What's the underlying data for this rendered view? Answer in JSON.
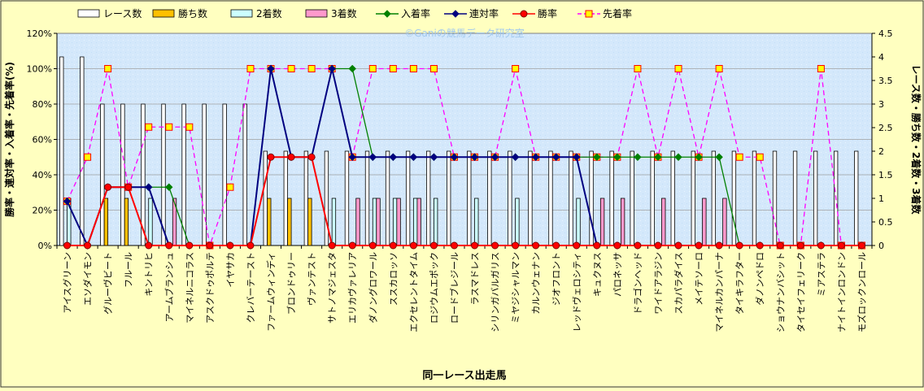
{
  "chart_data": {
    "type": "bar+line",
    "watermark": "©Ganiの競馬データ研究室",
    "xlabel": "同一レース出走馬",
    "ylabel_left": "勝率・連対率・入着率・先着率(%)",
    "ylabel_right": "レース数・勝ち数・2着数・3着数",
    "ylim_left": [
      0,
      120
    ],
    "ylim_right": [
      0,
      4.5
    ],
    "yticks_left": [
      "0%",
      "20%",
      "40%",
      "60%",
      "80%",
      "100%",
      "120%"
    ],
    "yticks_right": [
      "0",
      "0.5",
      "1",
      "1.5",
      "2",
      "2.5",
      "3",
      "3.5",
      "4",
      "4.5"
    ],
    "grid": true,
    "legend_position": "top",
    "categories": [
      "アイスグリーン",
      "エソダイモン",
      "グルーヴビート",
      "フルール",
      "キントリヒ",
      "アームブランシュ",
      "マイネルニコラス",
      "アスクドゥポルテ",
      "イヤサカ",
      "クレバーテースト",
      "ファームウィンディ",
      "ブロンドゥリー",
      "ヴァンテスト",
      "サトノマジェスタ",
      "エリカヴァレリア",
      "ダノングロワール",
      "ススカロッソ",
      "エクセレントタイム",
      "ロジウムエポック",
      "ロードブレジール",
      "ラスマドレス",
      "シリンガバルガリス",
      "ミヤジシャルマン",
      "カルンウェナン",
      "ジオフロント",
      "レッドヴェロシティ",
      "キュクヌス",
      "パロネッサ",
      "ドラゴンヘッド",
      "ワイドアラジン",
      "スカパラダイス",
      "メイテソーロ",
      "マイネルカンパーナ",
      "タイキラフター",
      "ダノンペドロ",
      "ショウナンバシット",
      "タイセイフェリーク",
      "ミアステラ",
      "ナイトインロンドン",
      "モズロックンロール"
    ],
    "series": [
      {
        "name": "レース数",
        "kind": "bar",
        "axis": "right",
        "color": "#FFFFFF",
        "values": [
          4,
          4,
          3,
          3,
          3,
          3,
          3,
          3,
          3,
          3,
          2,
          2,
          2,
          2,
          2,
          2,
          2,
          2,
          2,
          2,
          2,
          2,
          2,
          2,
          2,
          2,
          2,
          2,
          2,
          2,
          2,
          2,
          2,
          2,
          2,
          2,
          2,
          2,
          2,
          2
        ]
      },
      {
        "name": "勝ち数",
        "kind": "bar",
        "axis": "right",
        "color": "#FFC000",
        "values": [
          0,
          0,
          1,
          1,
          0,
          0,
          0,
          0,
          0,
          0,
          1,
          1,
          1,
          0,
          0,
          0,
          0,
          0,
          0,
          0,
          0,
          0,
          0,
          0,
          0,
          0,
          0,
          0,
          0,
          0,
          0,
          0,
          0,
          0,
          0,
          0,
          0,
          0,
          0,
          0
        ]
      },
      {
        "name": "2着数",
        "kind": "bar",
        "axis": "right",
        "color": "#CCFFFF",
        "values": [
          1,
          0,
          0,
          0,
          1,
          0,
          0,
          0,
          0,
          0,
          0,
          0,
          0,
          1,
          0,
          1,
          1,
          1,
          1,
          0,
          1,
          0,
          1,
          0,
          0,
          1,
          0,
          0,
          0,
          0,
          0,
          0,
          0,
          0,
          0,
          0,
          0,
          0,
          0,
          0
        ]
      },
      {
        "name": "3着数",
        "kind": "bar",
        "axis": "right",
        "color": "#FF99CC",
        "values": [
          0,
          0,
          0,
          0,
          0,
          1,
          0,
          0,
          0,
          0,
          0,
          0,
          0,
          0,
          1,
          1,
          1,
          1,
          0,
          0,
          0,
          0,
          0,
          0,
          0,
          0,
          1,
          1,
          0,
          1,
          0,
          1,
          1,
          0,
          0,
          0,
          0,
          0,
          0,
          0
        ]
      },
      {
        "name": "入着率",
        "kind": "line",
        "axis": "left",
        "color": "#008000",
        "marker": "diamond",
        "values": [
          25,
          0,
          33,
          33,
          33,
          33,
          0,
          0,
          0,
          0,
          100,
          50,
          50,
          100,
          100,
          50,
          50,
          50,
          50,
          50,
          50,
          50,
          50,
          50,
          50,
          50,
          50,
          50,
          50,
          50,
          50,
          50,
          50,
          0,
          0,
          0,
          0,
          0,
          0,
          0
        ]
      },
      {
        "name": "連対率",
        "kind": "line",
        "axis": "left",
        "color": "#000080",
        "marker": "diamond",
        "values": [
          25,
          0,
          33,
          33,
          33,
          0,
          0,
          0,
          0,
          0,
          100,
          50,
          50,
          100,
          50,
          50,
          50,
          50,
          50,
          50,
          50,
          50,
          50,
          50,
          50,
          50,
          0,
          0,
          0,
          0,
          0,
          0,
          0,
          0,
          0,
          0,
          0,
          0,
          0,
          0
        ]
      },
      {
        "name": "勝率",
        "kind": "line",
        "axis": "left",
        "color": "#FF0000",
        "marker": "circle",
        "values": [
          0,
          0,
          33,
          33,
          0,
          0,
          0,
          0,
          0,
          0,
          50,
          50,
          50,
          0,
          0,
          0,
          0,
          0,
          0,
          0,
          0,
          0,
          0,
          0,
          0,
          0,
          0,
          0,
          0,
          0,
          0,
          0,
          0,
          0,
          0,
          0,
          0,
          0,
          0,
          0
        ]
      },
      {
        "name": "先着率",
        "kind": "line",
        "axis": "left",
        "color": "#FF00FF",
        "dash": true,
        "marker": "square",
        "values": [
          25,
          50,
          100,
          33,
          67,
          67,
          67,
          0,
          33,
          100,
          100,
          100,
          100,
          100,
          50,
          100,
          100,
          100,
          100,
          50,
          50,
          50,
          100,
          50,
          50,
          50,
          50,
          50,
          100,
          50,
          100,
          50,
          100,
          50,
          50,
          0,
          0,
          100,
          0,
          0
        ]
      }
    ],
    "bar_markers": {
      "axis": "left",
      "y": 0,
      "color": "#FF0000"
    }
  }
}
